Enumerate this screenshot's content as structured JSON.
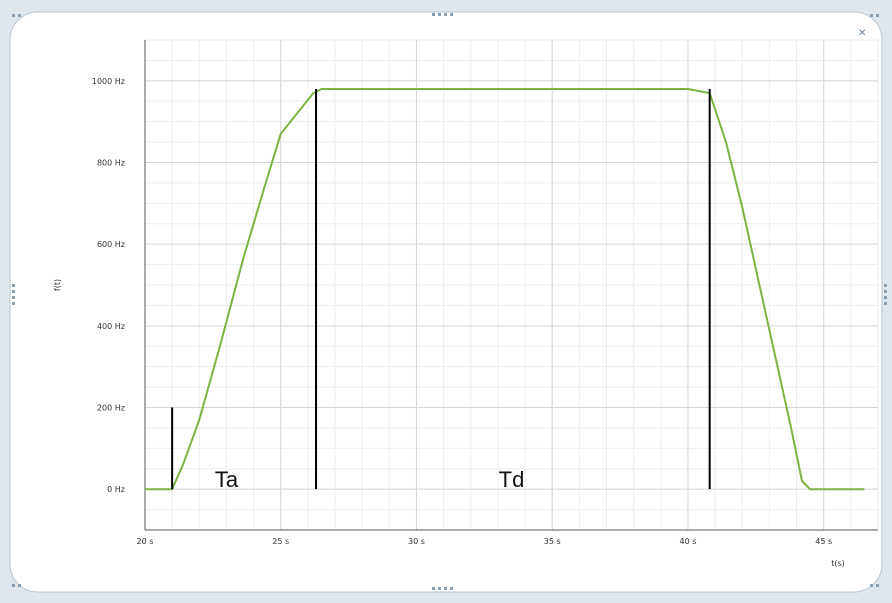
{
  "window": {
    "frame_color": "#dfe6ec",
    "panel_color": "#ffffff",
    "grip_icon": "resize-grip-icon",
    "close_icon": "close-icon"
  },
  "chart_data": {
    "type": "line",
    "title": "",
    "xlabel": "t(s)",
    "ylabel": "f(t)",
    "xlim": [
      20,
      47
    ],
    "ylim": [
      -100,
      1100
    ],
    "x_ticks": [
      20,
      25,
      30,
      35,
      40,
      45
    ],
    "x_tick_labels": [
      "20 s",
      "25 s",
      "30 s",
      "35 s",
      "40 s",
      "45 s"
    ],
    "y_ticks": [
      0,
      200,
      400,
      600,
      800,
      1000
    ],
    "y_tick_labels": [
      "0 Hz",
      "200 Hz",
      "400 Hz",
      "600 Hz",
      "800 Hz",
      "1000 Hz"
    ],
    "grid": true,
    "line_color": "#7cb342",
    "series": [
      {
        "x": [
          20,
          21.0,
          21.4,
          22.0,
          22.8,
          23.6,
          24.4,
          25.0,
          25.6,
          26.2,
          26.5,
          30,
          35,
          40,
          40.8,
          41.4,
          42.0,
          42.6,
          43.2,
          43.8,
          44.2,
          44.5,
          45,
          46.5
        ],
        "y": [
          0,
          0,
          60,
          170,
          360,
          560,
          740,
          870,
          920,
          970,
          980,
          980,
          980,
          980,
          970,
          850,
          690,
          510,
          330,
          150,
          20,
          0,
          0,
          0
        ]
      }
    ],
    "markers": [
      {
        "x": 21.0,
        "y_top": 200,
        "y_bottom": 0
      },
      {
        "x": 26.3,
        "y_top": 980,
        "y_bottom": 0
      },
      {
        "x": 40.8,
        "y_top": 980,
        "y_bottom": 0
      }
    ],
    "annotations": [
      {
        "text": "Ta",
        "x": 23.0,
        "y": 10
      },
      {
        "text": "Td",
        "x": 33.5,
        "y": 10
      }
    ]
  }
}
